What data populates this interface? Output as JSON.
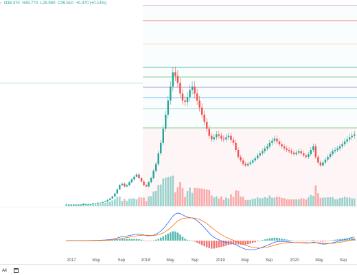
{
  "header": {
    "arrow": "‹",
    "open": "O38.370",
    "high": "H49.770",
    "low": "L29.980",
    "close": "C39.510",
    "change": "+0.470 (+0.14%)"
  },
  "colors": {
    "up": "#26a69a",
    "down": "#ef5350",
    "fib_colors": [
      "#c77dd1",
      "#ef5350",
      "#ffe0b2",
      "#26a69a",
      "#66bb6a",
      "#9575cd",
      "#42a5f5",
      "#80cbc4",
      "#66bb6a",
      "#ef9a9a"
    ],
    "macd_line": "#2962ff",
    "signal_line": "#ff6d00"
  },
  "footer": {
    "range_all": "All",
    "calendar_icon": "calendar-icon"
  },
  "chart_data": {
    "type": "candlestick",
    "title": "",
    "x_tick_labels": [
      "2017",
      "May",
      "Sep",
      "2018",
      "May",
      "Sep",
      "2019",
      "May",
      "Sep",
      "2020",
      "May",
      "Sep"
    ],
    "series": [
      {
        "name": "",
        "values": [
          2,
          2,
          2,
          2,
          2,
          2,
          2,
          3,
          3,
          3,
          3,
          4,
          4,
          5,
          5,
          6,
          7,
          9,
          11,
          14,
          18,
          24,
          30,
          32,
          28,
          30,
          34,
          38,
          42,
          45,
          40,
          35,
          30,
          28,
          34,
          40,
          50,
          60,
          75,
          90,
          110,
          130,
          150,
          170,
          190,
          185,
          175,
          160,
          150,
          148,
          155,
          165,
          170,
          160,
          150,
          140,
          130,
          120,
          110,
          100,
          95,
          98,
          102,
          100,
          96,
          95,
          98,
          100,
          94,
          90,
          80,
          70,
          65,
          60,
          58,
          60,
          62,
          65,
          68,
          72,
          75,
          78,
          82,
          85,
          90,
          93,
          96,
          92,
          88,
          85,
          82,
          80,
          78,
          76,
          74,
          76,
          78,
          75,
          72,
          70,
          74,
          80,
          85,
          70,
          62,
          58,
          62,
          66,
          70,
          74,
          78,
          80,
          82,
          85,
          88,
          92,
          95,
          98,
          100,
          102
        ]
      },
      {
        "name": "MACD",
        "values": []
      },
      {
        "name": "Signal",
        "values": []
      }
    ]
  }
}
